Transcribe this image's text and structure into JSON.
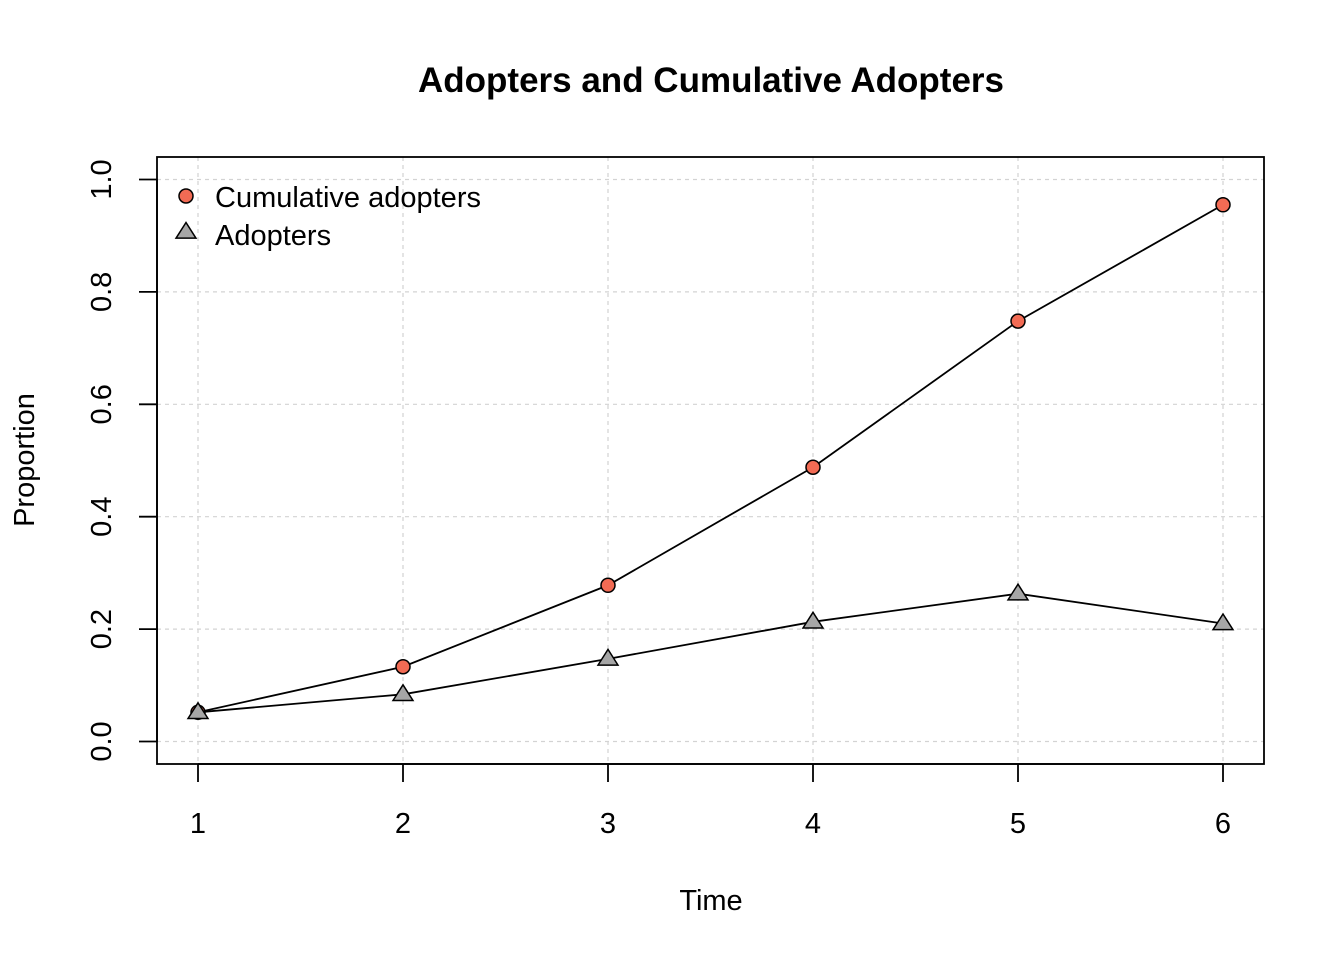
{
  "chart_data": {
    "type": "line",
    "title": "Adopters and Cumulative Adopters",
    "xlabel": "Time",
    "ylabel": "Proportion",
    "x": [
      1,
      2,
      3,
      4,
      5,
      6
    ],
    "xlim": [
      0.8,
      6.2
    ],
    "ylim": [
      -0.04,
      1.04
    ],
    "x_ticks": [
      "1",
      "2",
      "3",
      "4",
      "5",
      "6"
    ],
    "y_ticks": [
      "0.0",
      "0.2",
      "0.4",
      "0.6",
      "0.8",
      "1.0"
    ],
    "grid": true,
    "legend_position": "top-left",
    "series": [
      {
        "name": "Cumulative adopters",
        "marker": "circle",
        "color": "#f26b54",
        "values": [
          0.052,
          0.133,
          0.278,
          0.488,
          0.748,
          0.955
        ]
      },
      {
        "name": "Adopters",
        "marker": "triangle",
        "color": "#a6a6a6",
        "values": [
          0.052,
          0.084,
          0.147,
          0.213,
          0.263,
          0.21
        ]
      }
    ]
  }
}
